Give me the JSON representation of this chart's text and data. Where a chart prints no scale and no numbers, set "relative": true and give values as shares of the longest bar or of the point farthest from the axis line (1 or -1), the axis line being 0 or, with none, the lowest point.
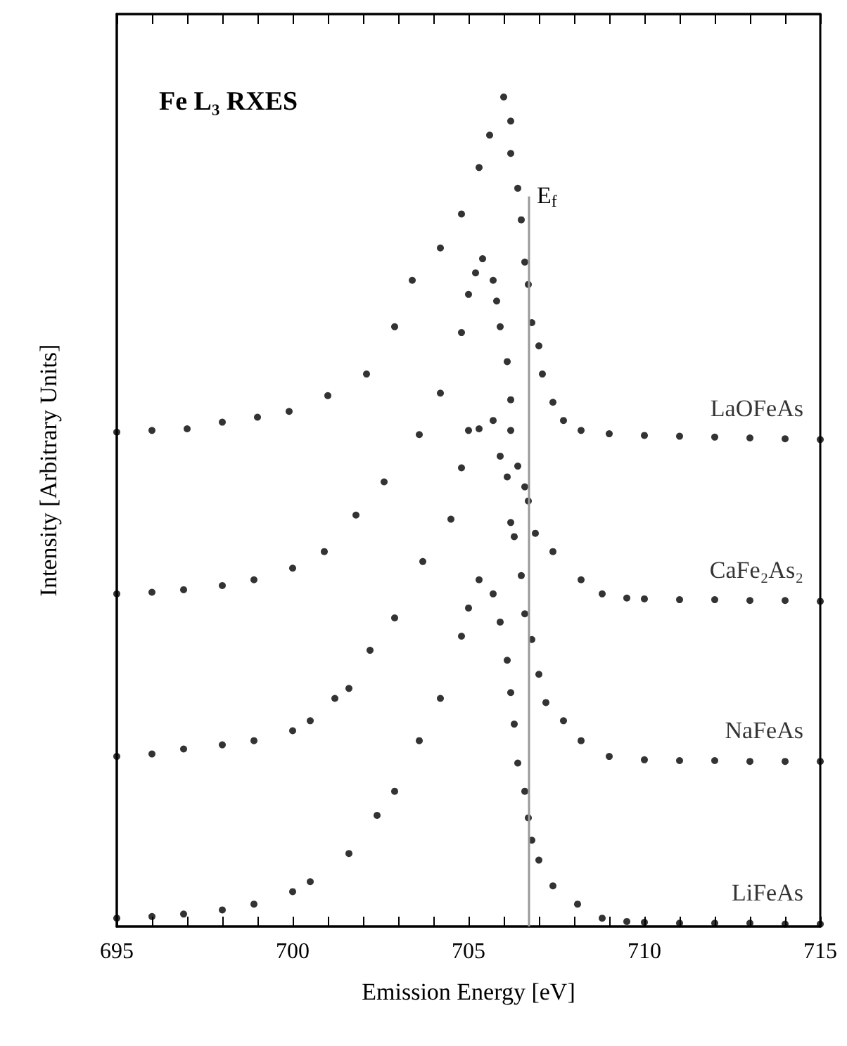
{
  "chart_data": {
    "type": "scatter",
    "title": "Fe L₃ RXES",
    "xlabel": "Emission Energy [eV]",
    "ylabel": "Intensity [Arbitrary Units]",
    "relative": true,
    "marker": "circle",
    "grid": false,
    "legend": false,
    "xlim": [
      695,
      715
    ],
    "xticks": [
      695,
      {
        "value": 696,
        "label": null
      },
      {
        "value": 697,
        "label": null
      },
      {
        "value": 698,
        "label": null
      },
      {
        "value": 699,
        "label": null
      },
      700,
      {
        "value": 701,
        "label": null
      },
      {
        "value": 702,
        "label": null
      },
      {
        "value": 703,
        "label": null
      },
      {
        "value": 704,
        "label": null
      },
      705,
      {
        "value": 706,
        "label": null
      },
      {
        "value": 707,
        "label": null
      },
      {
        "value": 708,
        "label": null
      },
      {
        "value": 709,
        "label": null
      },
      710,
      {
        "value": 711,
        "label": null
      },
      {
        "value": 712,
        "label": null
      },
      {
        "value": 713,
        "label": null
      },
      {
        "value": 714,
        "label": null
      },
      715
    ],
    "ref_lines": [
      {
        "axis": "x",
        "value": 706.7,
        "label": "E$_{f}$",
        "color": "#999999"
      }
    ],
    "series": [
      {
        "name": "LaOFeAs",
        "color": "#000000",
        "x": [
          695,
          696,
          697,
          698,
          699,
          699.9,
          701,
          702.1,
          702.9,
          703.4,
          704.2,
          704.8,
          705.3,
          705.6,
          706.0,
          706.2,
          706.2,
          706.4,
          706.5,
          706.6,
          706.7,
          706.8,
          707.0,
          707.1,
          707.4,
          707.7,
          708.2,
          709,
          710,
          711,
          712,
          713,
          714,
          715
        ],
        "values": [
          0.596,
          0.598,
          0.6,
          0.608,
          0.614,
          0.621,
          0.64,
          0.666,
          0.723,
          0.779,
          0.818,
          0.859,
          0.915,
          0.954,
          1,
          0.971,
          0.932,
          0.89,
          0.852,
          0.801,
          0.774,
          0.728,
          0.7,
          0.666,
          0.632,
          0.61,
          0.598,
          0.594,
          0.592,
          0.591,
          0.59,
          0.589,
          0.588,
          0.587
        ]
      },
      {
        "name": "CaFe₂As₂",
        "color": "#000000",
        "x": [
          695,
          696,
          696.9,
          698,
          698.9,
          700,
          700.9,
          701.8,
          702.6,
          703.6,
          704.2,
          704.8,
          705.0,
          705.2,
          705.4,
          705.7,
          705.8,
          705.9,
          706.1,
          706.2,
          706.2,
          706.4,
          706.6,
          706.7,
          706.9,
          707.4,
          708.2,
          708.8,
          709.5,
          710,
          711,
          712,
          713,
          714,
          715
        ],
        "values": [
          0.401,
          0.403,
          0.406,
          0.411,
          0.418,
          0.432,
          0.452,
          0.496,
          0.536,
          0.593,
          0.643,
          0.716,
          0.762,
          0.788,
          0.805,
          0.779,
          0.754,
          0.723,
          0.681,
          0.635,
          0.598,
          0.555,
          0.53,
          0.513,
          0.474,
          0.452,
          0.418,
          0.401,
          0.396,
          0.395,
          0.394,
          0.394,
          0.393,
          0.393,
          0.392
        ]
      },
      {
        "name": "NaFeAs",
        "color": "#000000",
        "x": [
          695,
          696,
          696.9,
          698,
          698.9,
          700,
          700.5,
          701.2,
          701.6,
          702.2,
          702.9,
          703.7,
          704.5,
          704.8,
          705.0,
          705.3,
          705.7,
          705.9,
          706.1,
          706.2,
          706.3,
          706.5,
          706.6,
          706.8,
          707.0,
          707.2,
          707.7,
          708.2,
          709.0,
          710,
          711,
          712,
          713,
          714,
          715
        ],
        "values": [
          0.205,
          0.208,
          0.214,
          0.219,
          0.224,
          0.236,
          0.248,
          0.275,
          0.287,
          0.333,
          0.372,
          0.44,
          0.491,
          0.553,
          0.598,
          0.6,
          0.61,
          0.567,
          0.542,
          0.487,
          0.47,
          0.423,
          0.377,
          0.346,
          0.304,
          0.27,
          0.248,
          0.224,
          0.205,
          0.201,
          0.2,
          0.2,
          0.199,
          0.199,
          0.199
        ]
      },
      {
        "name": "LiFeAs",
        "color": "#000000",
        "x": [
          695,
          696,
          696.9,
          698,
          698.9,
          700,
          700.5,
          701.6,
          702.4,
          702.9,
          703.6,
          704.2,
          704.8,
          705.0,
          705.3,
          705.7,
          705.9,
          706.1,
          706.2,
          706.3,
          706.4,
          706.6,
          706.7,
          706.8,
          707.0,
          707.4,
          708.1,
          708.8,
          709.5,
          710,
          711,
          712,
          713,
          714,
          715
        ],
        "values": [
          0.01,
          0.012,
          0.015,
          0.02,
          0.027,
          0.042,
          0.054,
          0.088,
          0.134,
          0.163,
          0.224,
          0.275,
          0.35,
          0.384,
          0.418,
          0.401,
          0.367,
          0.321,
          0.282,
          0.244,
          0.197,
          0.163,
          0.131,
          0.104,
          0.08,
          0.049,
          0.027,
          0.01,
          0.006,
          0.005,
          0.004,
          0.004,
          0.004,
          0.003,
          0.003
        ]
      }
    ]
  }
}
